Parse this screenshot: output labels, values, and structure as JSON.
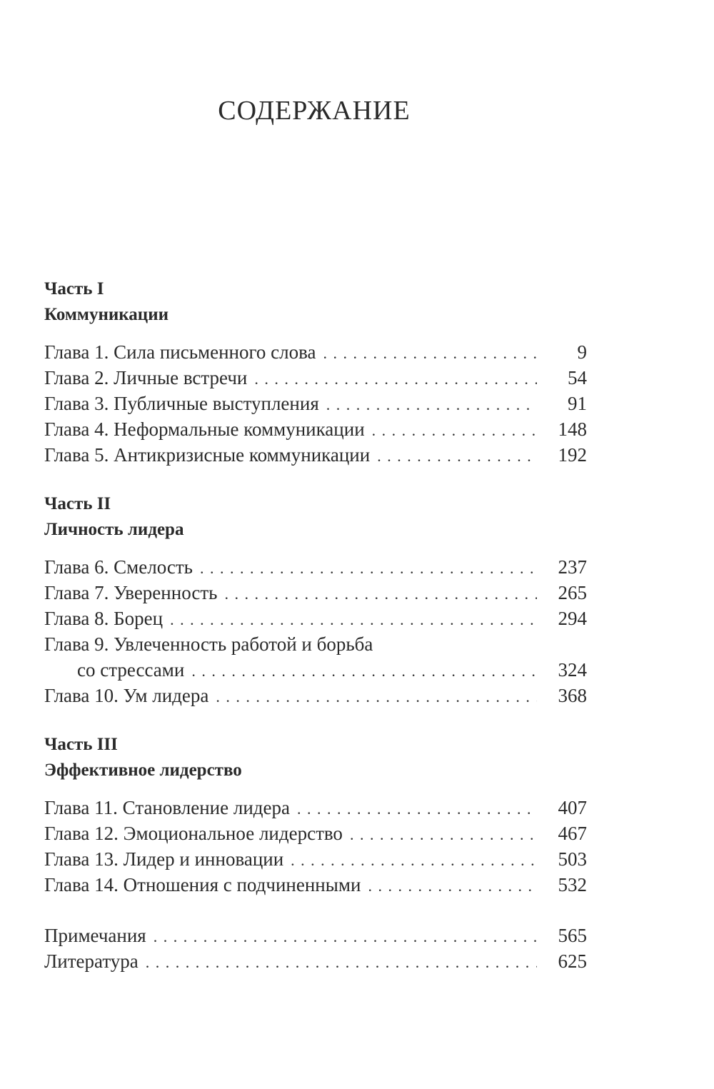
{
  "title": "СОДЕРЖАНИЕ",
  "parts": [
    {
      "label": "Часть I",
      "name": "Коммуникации",
      "chapters": [
        {
          "title": "Глава 1. Сила письменного слова",
          "page": "9"
        },
        {
          "title": "Глава 2. Личные встречи",
          "page": "54"
        },
        {
          "title": "Глава 3. Публичные выступления",
          "page": "91"
        },
        {
          "title": "Глава 4. Неформальные коммуникации",
          "page": "148"
        },
        {
          "title": "Глава 5. Антикризисные коммуникации",
          "page": "192"
        }
      ]
    },
    {
      "label": "Часть II",
      "name": "Личность лидера",
      "chapters": [
        {
          "title": "Глава 6. Смелость",
          "page": "237"
        },
        {
          "title": "Глава 7. Уверенность",
          "page": "265"
        },
        {
          "title": "Глава 8. Борец",
          "page": "294"
        },
        {
          "title": "Глава 9. Увлеченность работой и борьба",
          "title_cont": "со стрессами",
          "page": "324"
        },
        {
          "title": "Глава 10. Ум лидера",
          "page": "368"
        }
      ]
    },
    {
      "label": "Часть III",
      "name": "Эффективное лидерство",
      "chapters": [
        {
          "title": "Глава 11. Становление лидера",
          "page": "407"
        },
        {
          "title": "Глава 12. Эмоциональное лидерство",
          "page": "467"
        },
        {
          "title": "Глава 13. Лидер и инновации",
          "page": "503"
        },
        {
          "title": "Глава 14. Отношения с подчиненными",
          "page": "532"
        }
      ]
    }
  ],
  "back_matter": [
    {
      "title": "Примечания",
      "page": "565"
    },
    {
      "title": "Литература",
      "page": "625"
    }
  ]
}
